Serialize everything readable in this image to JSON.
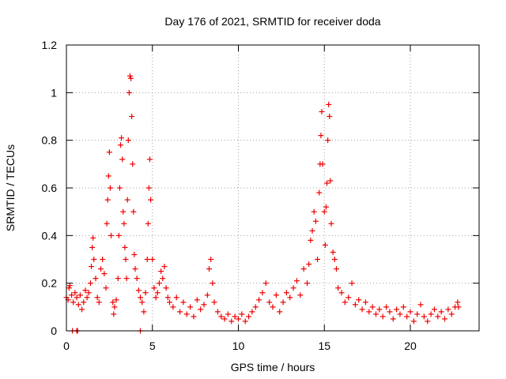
{
  "chart_data": {
    "type": "scatter",
    "title": "Day 176 of 2021, SRMTID for receiver doda",
    "xlabel": "GPS time / hours",
    "ylabel": "SRMTID / TECUs",
    "xlim": [
      0,
      24
    ],
    "ylim": [
      0,
      1.2
    ],
    "grid": true,
    "marker": "+",
    "color": "#ee0000",
    "x_ticks": [
      0,
      5,
      10,
      15,
      20
    ],
    "x_tick_labels": [
      "0",
      "5",
      "10",
      "15",
      "20"
    ],
    "y_ticks": [
      0,
      0.2,
      0.4,
      0.6,
      0.8,
      1.0,
      1.2
    ],
    "y_tick_labels": [
      "0",
      "0.2",
      "0.4",
      "0.6",
      "0.8",
      "1",
      "1.2"
    ],
    "series": [
      {
        "name": "SRMTID",
        "points": [
          [
            0.0,
            0.14
          ],
          [
            0.1,
            0.13
          ],
          [
            0.15,
            0.18
          ],
          [
            0.2,
            0.19
          ],
          [
            0.3,
            0.15
          ],
          [
            0.4,
            0.12
          ],
          [
            0.5,
            0.16
          ],
          [
            0.6,
            0.14
          ],
          [
            0.7,
            0.11
          ],
          [
            0.8,
            0.15
          ],
          [
            0.9,
            0.09
          ],
          [
            1.0,
            0.12
          ],
          [
            1.1,
            0.17
          ],
          [
            1.2,
            0.14
          ],
          [
            1.3,
            0.16
          ],
          [
            0.35,
            0.0
          ],
          [
            0.6,
            0.0
          ],
          [
            0.65,
            0.0
          ],
          [
            1.4,
            0.2
          ],
          [
            1.45,
            0.27
          ],
          [
            1.5,
            0.35
          ],
          [
            1.55,
            0.39
          ],
          [
            1.6,
            0.3
          ],
          [
            1.7,
            0.22
          ],
          [
            1.8,
            0.14
          ],
          [
            1.9,
            0.12
          ],
          [
            2.0,
            0.26
          ],
          [
            2.1,
            0.3
          ],
          [
            2.2,
            0.24
          ],
          [
            2.3,
            0.18
          ],
          [
            2.35,
            0.45
          ],
          [
            2.4,
            0.55
          ],
          [
            2.45,
            0.65
          ],
          [
            2.5,
            0.75
          ],
          [
            2.55,
            0.6
          ],
          [
            2.6,
            0.4
          ],
          [
            2.7,
            0.12
          ],
          [
            2.75,
            0.07
          ],
          [
            2.8,
            0.1
          ],
          [
            2.9,
            0.13
          ],
          [
            3.0,
            0.22
          ],
          [
            3.05,
            0.4
          ],
          [
            3.1,
            0.6
          ],
          [
            3.15,
            0.78
          ],
          [
            3.2,
            0.81
          ],
          [
            3.25,
            0.72
          ],
          [
            3.3,
            0.5
          ],
          [
            3.35,
            0.45
          ],
          [
            3.4,
            0.35
          ],
          [
            3.45,
            0.3
          ],
          [
            3.5,
            0.22
          ],
          [
            3.55,
            0.55
          ],
          [
            3.6,
            0.8
          ],
          [
            3.65,
            1.0
          ],
          [
            3.7,
            1.07
          ],
          [
            3.75,
            1.06
          ],
          [
            3.8,
            0.9
          ],
          [
            3.85,
            0.7
          ],
          [
            3.9,
            0.5
          ],
          [
            3.95,
            0.32
          ],
          [
            4.0,
            0.26
          ],
          [
            4.1,
            0.22
          ],
          [
            4.2,
            0.17
          ],
          [
            4.3,
            0.14
          ],
          [
            4.4,
            0.12
          ],
          [
            4.5,
            0.08
          ],
          [
            4.6,
            0.16
          ],
          [
            4.7,
            0.3
          ],
          [
            4.75,
            0.45
          ],
          [
            4.8,
            0.6
          ],
          [
            4.85,
            0.72
          ],
          [
            4.9,
            0.55
          ],
          [
            5.0,
            0.3
          ],
          [
            5.1,
            0.18
          ],
          [
            5.2,
            0.14
          ],
          [
            4.3,
            0.0
          ],
          [
            5.3,
            0.16
          ],
          [
            5.4,
            0.2
          ],
          [
            5.5,
            0.25
          ],
          [
            5.6,
            0.22
          ],
          [
            5.7,
            0.27
          ],
          [
            5.8,
            0.18
          ],
          [
            5.9,
            0.14
          ],
          [
            6.0,
            0.12
          ],
          [
            6.2,
            0.1
          ],
          [
            6.4,
            0.14
          ],
          [
            6.6,
            0.08
          ],
          [
            6.8,
            0.12
          ],
          [
            7.0,
            0.07
          ],
          [
            7.2,
            0.1
          ],
          [
            7.4,
            0.06
          ],
          [
            7.6,
            0.13
          ],
          [
            7.8,
            0.09
          ],
          [
            8.0,
            0.11
          ],
          [
            8.2,
            0.15
          ],
          [
            8.3,
            0.26
          ],
          [
            8.4,
            0.3
          ],
          [
            8.5,
            0.2
          ],
          [
            8.6,
            0.12
          ],
          [
            8.8,
            0.08
          ],
          [
            9.0,
            0.06
          ],
          [
            9.2,
            0.05
          ],
          [
            9.4,
            0.07
          ],
          [
            9.6,
            0.04
          ],
          [
            9.8,
            0.06
          ],
          [
            10.0,
            0.05
          ],
          [
            10.2,
            0.07
          ],
          [
            10.4,
            0.04
          ],
          [
            10.6,
            0.06
          ],
          [
            10.8,
            0.08
          ],
          [
            11.0,
            0.1
          ],
          [
            11.2,
            0.13
          ],
          [
            11.4,
            0.16
          ],
          [
            11.6,
            0.2
          ],
          [
            11.8,
            0.12
          ],
          [
            12.0,
            0.1
          ],
          [
            12.2,
            0.15
          ],
          [
            12.4,
            0.08
          ],
          [
            12.6,
            0.12
          ],
          [
            12.8,
            0.16
          ],
          [
            13.0,
            0.14
          ],
          [
            13.2,
            0.18
          ],
          [
            13.4,
            0.21
          ],
          [
            13.6,
            0.15
          ],
          [
            13.8,
            0.26
          ],
          [
            14.0,
            0.2
          ],
          [
            14.1,
            0.28
          ],
          [
            14.2,
            0.38
          ],
          [
            14.3,
            0.42
          ],
          [
            14.4,
            0.5
          ],
          [
            14.5,
            0.46
          ],
          [
            14.6,
            0.3
          ],
          [
            14.7,
            0.58
          ],
          [
            14.75,
            0.7
          ],
          [
            14.8,
            0.82
          ],
          [
            14.85,
            0.92
          ],
          [
            14.9,
            0.7
          ],
          [
            15.0,
            0.5
          ],
          [
            15.05,
            0.36
          ],
          [
            15.1,
            0.52
          ],
          [
            15.15,
            0.62
          ],
          [
            15.2,
            0.8
          ],
          [
            15.25,
            0.95
          ],
          [
            15.3,
            0.9
          ],
          [
            15.35,
            0.63
          ],
          [
            15.4,
            0.45
          ],
          [
            15.5,
            0.33
          ],
          [
            15.6,
            0.3
          ],
          [
            15.7,
            0.26
          ],
          [
            15.8,
            0.18
          ],
          [
            16.0,
            0.16
          ],
          [
            16.2,
            0.12
          ],
          [
            16.4,
            0.14
          ],
          [
            16.6,
            0.2
          ],
          [
            16.8,
            0.11
          ],
          [
            17.0,
            0.13
          ],
          [
            17.2,
            0.09
          ],
          [
            17.4,
            0.12
          ],
          [
            17.6,
            0.08
          ],
          [
            17.8,
            0.1
          ],
          [
            18.0,
            0.07
          ],
          [
            18.2,
            0.09
          ],
          [
            18.4,
            0.06
          ],
          [
            18.6,
            0.1
          ],
          [
            18.8,
            0.08
          ],
          [
            19.0,
            0.05
          ],
          [
            19.2,
            0.09
          ],
          [
            19.4,
            0.07
          ],
          [
            19.6,
            0.1
          ],
          [
            19.8,
            0.06
          ],
          [
            20.0,
            0.08
          ],
          [
            20.2,
            0.04
          ],
          [
            20.4,
            0.07
          ],
          [
            20.6,
            0.11
          ],
          [
            20.8,
            0.06
          ],
          [
            21.0,
            0.04
          ],
          [
            21.2,
            0.07
          ],
          [
            21.4,
            0.09
          ],
          [
            21.6,
            0.06
          ],
          [
            21.8,
            0.08
          ],
          [
            22.0,
            0.05
          ],
          [
            22.2,
            0.09
          ],
          [
            22.4,
            0.07
          ],
          [
            22.6,
            0.1
          ],
          [
            22.75,
            0.12
          ],
          [
            22.8,
            0.1
          ]
        ]
      }
    ]
  }
}
